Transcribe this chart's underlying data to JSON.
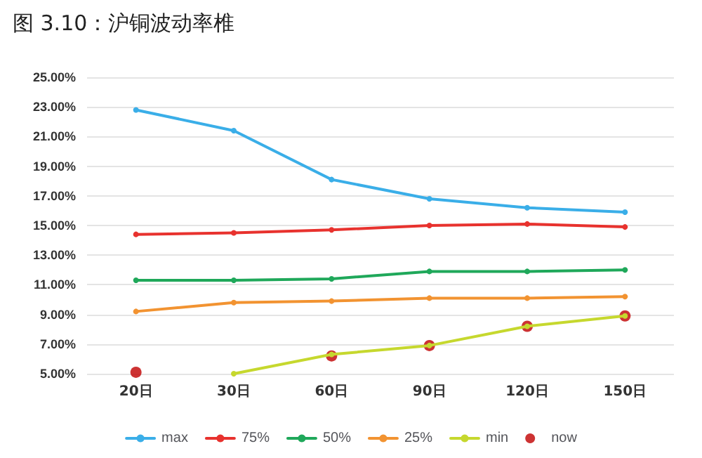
{
  "chart_data": {
    "type": "line",
    "title": "图 3.10：沪铜波动率椎",
    "categories": [
      "20日",
      "30日",
      "60日",
      "90日",
      "120日",
      "150日"
    ],
    "series": [
      {
        "name": "max",
        "color": "#3aaee8",
        "values": [
          22.8,
          21.4,
          18.1,
          16.8,
          16.2,
          15.9
        ]
      },
      {
        "name": "75%",
        "color": "#e8322e",
        "values": [
          14.4,
          14.5,
          14.7,
          15.0,
          15.1,
          14.9
        ]
      },
      {
        "name": "50%",
        "color": "#1fa85a",
        "values": [
          11.3,
          11.3,
          11.4,
          11.9,
          11.9,
          12.0
        ]
      },
      {
        "name": "25%",
        "color": "#f29331",
        "values": [
          9.2,
          9.8,
          9.9,
          10.1,
          10.1,
          10.2
        ]
      },
      {
        "name": "min",
        "color": "#c6d82e",
        "values": [
          null,
          5.0,
          6.3,
          6.9,
          8.2,
          8.9
        ]
      },
      {
        "name": "now",
        "type": "scatter",
        "color": "#c00000",
        "values": [
          5.1,
          null,
          6.2,
          6.9,
          8.2,
          8.9
        ]
      }
    ],
    "ylim": [
      5,
      25
    ],
    "yticks": [
      {
        "value": 5,
        "label": "5.00%"
      },
      {
        "value": 7,
        "label": "7.00%"
      },
      {
        "value": 9,
        "label": "9.00%"
      },
      {
        "value": 11,
        "label": "11.00%"
      },
      {
        "value": 13,
        "label": "13.00%"
      },
      {
        "value": 15,
        "label": "15.00%"
      },
      {
        "value": 17,
        "label": "17.00%"
      },
      {
        "value": 19,
        "label": "19.00%"
      },
      {
        "value": 21,
        "label": "21.00%"
      },
      {
        "value": 23,
        "label": "23.00%"
      },
      {
        "value": 25,
        "label": "25.00%"
      }
    ],
    "grid": "y",
    "legend": "bottom",
    "marker": "circle",
    "line_style": "solid"
  }
}
